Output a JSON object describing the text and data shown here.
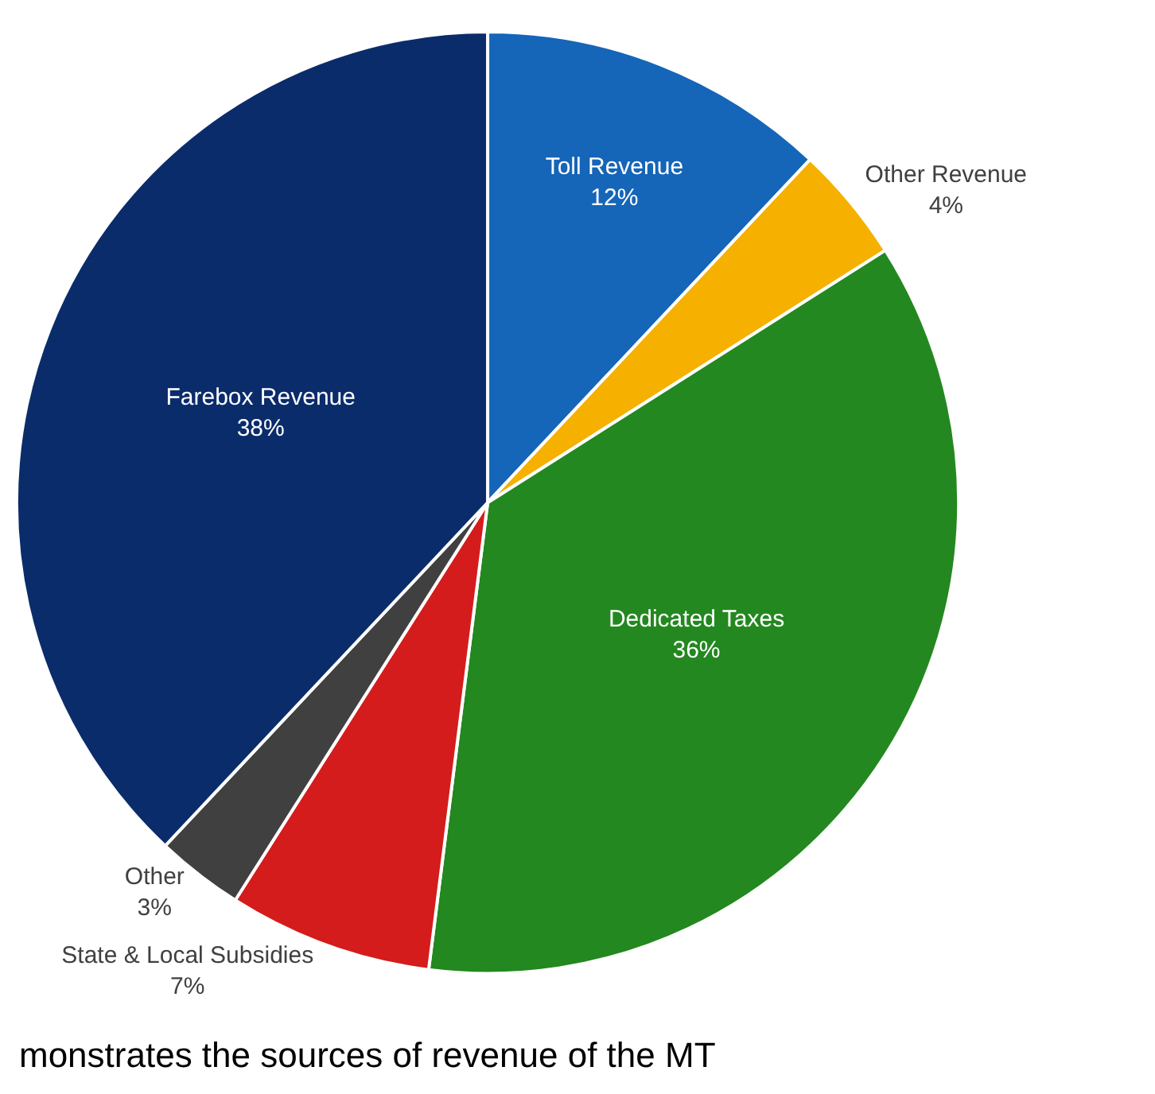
{
  "chart_data": {
    "type": "pie",
    "categories": [
      "Toll Revenue",
      "Other Revenue",
      "Dedicated Taxes",
      "State & Local Subsidies",
      "Other",
      "Farebox Revenue"
    ],
    "values": [
      12,
      4,
      36,
      7,
      3,
      38
    ],
    "value_labels": [
      "12%",
      "4%",
      "36%",
      "7%",
      "3%",
      "38%"
    ],
    "colors": [
      "#1565b8",
      "#f5b000",
      "#23881f",
      "#d41c1c",
      "#404040",
      "#0b2c6b"
    ],
    "legend": false,
    "annotations": [
      "monstrates the sources of revenue of the MT"
    ]
  }
}
